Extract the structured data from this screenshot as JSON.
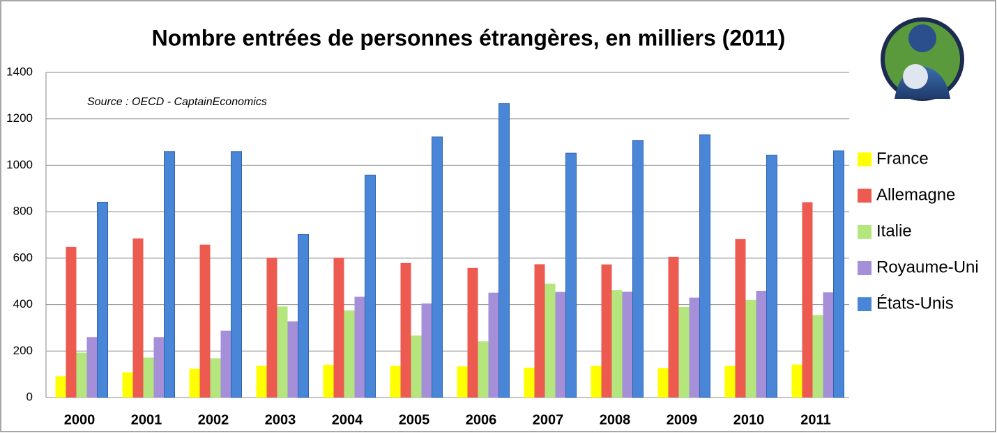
{
  "chart_data": {
    "type": "bar",
    "title": "Nombre entrées de personnes étrangères, en milliers (2011)",
    "annotation": "Source : OECD - CaptainEconomics",
    "categories": [
      "2000",
      "2001",
      "2002",
      "2003",
      "2004",
      "2005",
      "2006",
      "2007",
      "2008",
      "2009",
      "2010",
      "2011"
    ],
    "series": [
      {
        "name": "France",
        "color": "#ffff00",
        "values": [
          92,
          108,
          124,
          136,
          141,
          136,
          134,
          128,
          136,
          126,
          136,
          142
        ]
      },
      {
        "name": "Allemagne",
        "color": "#ec5a50",
        "values": [
          648,
          685,
          658,
          602,
          602,
          579,
          558,
          574,
          573,
          606,
          683,
          841
        ]
      },
      {
        "name": "Italie",
        "color": "#b5e67e",
        "values": [
          193,
          172,
          169,
          392,
          375,
          267,
          242,
          490,
          462,
          390,
          420,
          355
        ]
      },
      {
        "name": "Royaume-Uni",
        "color": "#a48fd8",
        "values": [
          260,
          260,
          288,
          328,
          434,
          405,
          451,
          455,
          456,
          430,
          459,
          453
        ]
      },
      {
        "name": "États-Unis",
        "color": "#4a86d8",
        "values": [
          841,
          1059,
          1059,
          703,
          958,
          1122,
          1266,
          1052,
          1107,
          1131,
          1043,
          1062
        ]
      }
    ],
    "ylim": [
      0,
      1400
    ],
    "yticks": [
      0,
      200,
      400,
      600,
      800,
      1000,
      1200,
      1400
    ],
    "grid": true,
    "legend": "right"
  }
}
